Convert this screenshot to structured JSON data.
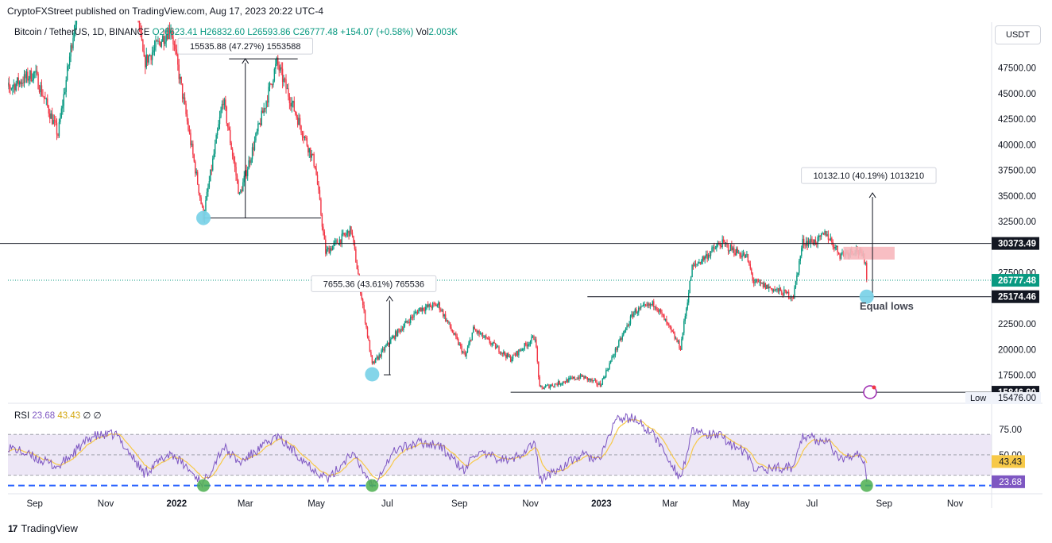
{
  "header": {
    "published": "CryptoFXStreet published on TradingView.com, Aug 17, 2023 20:22 UTC-4"
  },
  "legend": {
    "symbol": "Bitcoin / TetherUS, 1D, BINANCE",
    "ohlc": "O26623.41 H26832.60 L26593.86 C26777.48 +154.07 (+0.58%)",
    "vol_label": "Vol",
    "vol_value": "2.003K"
  },
  "currency": "USDT",
  "rsi_legend": {
    "label": "RSI",
    "v1": "23.68",
    "v2": "43.43",
    "v3": "∅ ∅"
  },
  "footer": {
    "brand": "TradingView",
    "logo": "17"
  },
  "colors": {
    "up": "#089981",
    "down": "#f23645",
    "rsi_line": "#7e57c2",
    "rsi_ma": "#f7c948",
    "rsi_band": "#ede7f6",
    "marker_blue": "#7dd3e8",
    "marker_green": "#4caf50",
    "supply_zone": "#f7b7bd"
  },
  "chart_data": {
    "type": "candlestick",
    "price_axis": {
      "ticks": [
        "47500.00",
        "45000.00",
        "42500.00",
        "40000.00",
        "37500.00",
        "35000.00",
        "32500.00",
        "27500.00",
        "22500.00",
        "20000.00",
        "17500.00"
      ],
      "range": [
        15000,
        49800
      ]
    },
    "price_labels": [
      {
        "text": "30373.49",
        "value": 30373.49,
        "style": "dark"
      },
      {
        "text": "26777.48",
        "value": 26777.48,
        "style": "green"
      },
      {
        "text": "25174.46",
        "value": 25174.46,
        "style": "dark"
      },
      {
        "text": "15846.90",
        "value": 15846.9,
        "style": "dark"
      }
    ],
    "low_label": {
      "label": "Low",
      "value": "15476.00"
    },
    "time_axis": [
      "Sep",
      "Nov",
      "2022",
      "Mar",
      "May",
      "Jul",
      "Sep",
      "Nov",
      "2023",
      "Mar",
      "May",
      "Jul",
      "Sep",
      "Nov"
    ],
    "anchors": [
      {
        "date": "2021-08-01",
        "price": 45000
      },
      {
        "date": "2021-09-01",
        "price": 47000
      },
      {
        "date": "2021-09-21",
        "price": 41000
      },
      {
        "date": "2021-10-20",
        "price": 63000
      },
      {
        "date": "2021-11-10",
        "price": 68000
      },
      {
        "date": "2021-12-04",
        "price": 48000
      },
      {
        "date": "2021-12-27",
        "price": 51500
      },
      {
        "date": "2022-01-24",
        "price": 33000
      },
      {
        "date": "2022-02-10",
        "price": 44500
      },
      {
        "date": "2022-02-24",
        "price": 35000
      },
      {
        "date": "2022-03-28",
        "price": 48000
      },
      {
        "date": "2022-04-30",
        "price": 38000
      },
      {
        "date": "2022-05-09",
        "price": 29500
      },
      {
        "date": "2022-05-31",
        "price": 31700
      },
      {
        "date": "2022-06-18",
        "price": 18500
      },
      {
        "date": "2022-07-08",
        "price": 21500
      },
      {
        "date": "2022-07-29",
        "price": 24000
      },
      {
        "date": "2022-08-14",
        "price": 24400
      },
      {
        "date": "2022-09-06",
        "price": 19300
      },
      {
        "date": "2022-09-13",
        "price": 22000
      },
      {
        "date": "2022-10-15",
        "price": 19100
      },
      {
        "date": "2022-11-05",
        "price": 21300
      },
      {
        "date": "2022-11-09",
        "price": 16200
      },
      {
        "date": "2022-12-15",
        "price": 17400
      },
      {
        "date": "2022-12-31",
        "price": 16550
      },
      {
        "date": "2023-01-13",
        "price": 19900
      },
      {
        "date": "2023-01-29",
        "price": 23700
      },
      {
        "date": "2023-02-16",
        "price": 24500
      },
      {
        "date": "2023-03-10",
        "price": 20200
      },
      {
        "date": "2023-03-20",
        "price": 28000
      },
      {
        "date": "2023-04-14",
        "price": 30400
      },
      {
        "date": "2023-05-06",
        "price": 29000
      },
      {
        "date": "2023-05-12",
        "price": 26600
      },
      {
        "date": "2023-06-15",
        "price": 25200
      },
      {
        "date": "2023-06-23",
        "price": 30500
      },
      {
        "date": "2023-07-06",
        "price": 30600
      },
      {
        "date": "2023-07-13",
        "price": 31400
      },
      {
        "date": "2023-07-25",
        "price": 29300
      },
      {
        "date": "2023-08-08",
        "price": 29800
      },
      {
        "date": "2023-08-16",
        "price": 28700
      },
      {
        "date": "2023-08-17",
        "price": 26777
      }
    ],
    "levels": [
      {
        "name": "resistance",
        "value": 30373.49,
        "from": "2021-08-01",
        "to": "2023-11-30"
      },
      {
        "name": "equal-lows",
        "value": 25174.46,
        "from": "2022-12-20",
        "to": "2023-11-30"
      },
      {
        "name": "support",
        "value": 15846.9,
        "from": "2022-10-15",
        "to": "2023-11-30"
      }
    ],
    "measurements": [
      {
        "label": "15535.88 (47.27%) 1553588",
        "date": "2022-03-01",
        "from": 32860,
        "to": 48400,
        "base_from": "2022-01-24",
        "base_to": "2022-05-05",
        "top_from": "2022-02-15",
        "top_to": "2022-04-15"
      },
      {
        "label": "7655.36 (43.61%) 765536",
        "date": "2022-07-03",
        "from": 17550,
        "to": 25200,
        "base_from": "2022-06-28",
        "base_to": "2022-07-04"
      },
      {
        "label": "10132.10 (40.19%) 1013210",
        "date": "2023-08-22",
        "from": 25174,
        "to": 35300
      }
    ],
    "markers": [
      {
        "date": "2022-01-24",
        "price": 32860
      },
      {
        "date": "2022-06-18",
        "price": 17600
      },
      {
        "date": "2023-08-17",
        "price": 25174
      }
    ],
    "supply_zone": {
      "from": "2023-07-28",
      "to": "2023-09-10",
      "low": 28800,
      "high": 30050
    },
    "annotation": {
      "text": "Equal lows",
      "date": "2023-08-11",
      "price": 23900
    },
    "rsi": {
      "ticks": [
        "75.00",
        "50.00"
      ],
      "range": [
        15,
        95
      ],
      "band": [
        30,
        70
      ],
      "level": 20,
      "value_labels": [
        {
          "text": "43.43",
          "value": 43.43
        },
        {
          "text": "23.68",
          "value": 23.68
        }
      ],
      "anchors": [
        {
          "date": "2021-08-01",
          "value": 62
        },
        {
          "date": "2021-09-21",
          "value": 38
        },
        {
          "date": "2021-10-20",
          "value": 68
        },
        {
          "date": "2021-11-10",
          "value": 70
        },
        {
          "date": "2021-12-04",
          "value": 32
        },
        {
          "date": "2021-12-27",
          "value": 52
        },
        {
          "date": "2022-01-24",
          "value": 22
        },
        {
          "date": "2022-02-10",
          "value": 58
        },
        {
          "date": "2022-02-24",
          "value": 42
        },
        {
          "date": "2022-03-28",
          "value": 68
        },
        {
          "date": "2022-04-30",
          "value": 35
        },
        {
          "date": "2022-05-12",
          "value": 26
        },
        {
          "date": "2022-05-31",
          "value": 52
        },
        {
          "date": "2022-06-18",
          "value": 21
        },
        {
          "date": "2022-07-08",
          "value": 55
        },
        {
          "date": "2022-07-29",
          "value": 62
        },
        {
          "date": "2022-08-14",
          "value": 60
        },
        {
          "date": "2022-09-06",
          "value": 33
        },
        {
          "date": "2022-09-13",
          "value": 52
        },
        {
          "date": "2022-10-15",
          "value": 44
        },
        {
          "date": "2022-11-05",
          "value": 62
        },
        {
          "date": "2022-11-09",
          "value": 25
        },
        {
          "date": "2022-12-15",
          "value": 50
        },
        {
          "date": "2022-12-31",
          "value": 45
        },
        {
          "date": "2023-01-13",
          "value": 85
        },
        {
          "date": "2023-01-29",
          "value": 86
        },
        {
          "date": "2023-02-16",
          "value": 68
        },
        {
          "date": "2023-03-10",
          "value": 27
        },
        {
          "date": "2023-03-20",
          "value": 72
        },
        {
          "date": "2023-04-14",
          "value": 68
        },
        {
          "date": "2023-05-06",
          "value": 50
        },
        {
          "date": "2023-05-12",
          "value": 36
        },
        {
          "date": "2023-06-15",
          "value": 38
        },
        {
          "date": "2023-06-23",
          "value": 70
        },
        {
          "date": "2023-07-06",
          "value": 64
        },
        {
          "date": "2023-07-13",
          "value": 66
        },
        {
          "date": "2023-07-25",
          "value": 45
        },
        {
          "date": "2023-08-08",
          "value": 52
        },
        {
          "date": "2023-08-16",
          "value": 38
        },
        {
          "date": "2023-08-17",
          "value": 23.68
        }
      ],
      "markers": [
        {
          "date": "2022-01-24",
          "value": 20
        },
        {
          "date": "2022-06-18",
          "value": 20
        },
        {
          "date": "2023-08-17",
          "value": 20
        }
      ]
    }
  }
}
